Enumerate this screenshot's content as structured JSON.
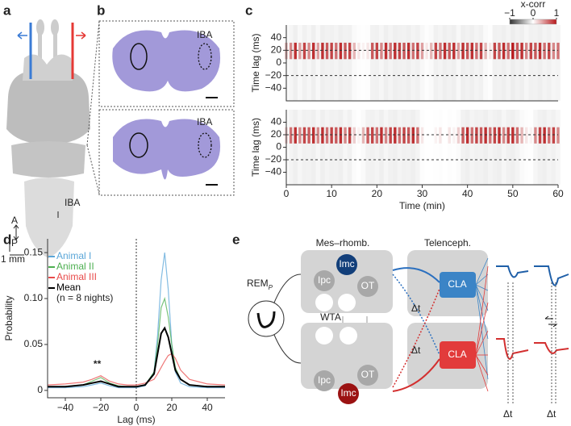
{
  "panel_labels": [
    "a",
    "b",
    "c",
    "d",
    "e"
  ],
  "panel_a": {
    "region": "IBA",
    "anterior": "A",
    "posterior": "P",
    "scale": "1 mm"
  },
  "panel_b": {
    "regions": [
      "IBA",
      "IBA"
    ]
  },
  "chart_data": [
    {
      "type": "heatmap",
      "ylabel": "Time lag (ms)",
      "x": [
        0,
        1,
        2,
        3,
        4,
        5,
        6,
        7,
        8,
        9,
        10,
        11,
        12,
        13,
        14,
        15,
        16,
        17,
        18,
        19,
        20,
        21,
        22,
        23,
        24,
        25,
        26,
        27,
        28,
        29,
        30,
        31,
        32,
        33,
        34,
        35,
        36,
        37,
        38,
        39,
        40,
        41,
        42,
        43,
        44,
        45,
        46,
        47,
        48,
        49,
        50,
        51,
        52,
        53,
        54,
        55,
        56,
        57,
        58,
        59,
        60
      ],
      "values": [
        0.3,
        0.5,
        0.9,
        0.4,
        0.8,
        0.5,
        0.9,
        0.4,
        0.9,
        0.7,
        0.8,
        0.6,
        0.9,
        0.7,
        0.8,
        0.3,
        0.1,
        0.05,
        0.1,
        0.7,
        0.8,
        0.5,
        0.9,
        0.6,
        0.9,
        0.8,
        0.7,
        0.9,
        0.6,
        0.8,
        0.4,
        0.1,
        0.3,
        0.8,
        0.6,
        0.9,
        0.7,
        0.9,
        0.4,
        0.9,
        0.7,
        0.9,
        0.6,
        0.8,
        0.3,
        0.1,
        0.8,
        0.7,
        0.9,
        0.6,
        1.0,
        0.7,
        0.9,
        0.5,
        0.8,
        0.7,
        0.9,
        0.6,
        0.8,
        0.5,
        0.6
      ],
      "color": "#b8191c",
      "xlim": [
        0,
        60
      ],
      "ylim": [
        -60,
        60
      ],
      "yticks": [
        {
          "value": -40,
          "label": "−40"
        },
        {
          "value": -20,
          "label": "−20"
        },
        0,
        20,
        40
      ],
      "hlines": [
        20,
        -20
      ],
      "colorbar": {
        "label": "x-corr",
        "ticks": [
          {
            "value": -1,
            "label": "−1"
          },
          0,
          1
        ]
      }
    },
    {
      "type": "heatmap",
      "ylabel": "Time lag (ms)",
      "xlabel": "Time (min)",
      "x": [
        0,
        1,
        2,
        3,
        4,
        5,
        6,
        7,
        8,
        9,
        10,
        11,
        12,
        13,
        14,
        15,
        16,
        17,
        18,
        19,
        20,
        21,
        22,
        23,
        24,
        25,
        26,
        27,
        28,
        29,
        30,
        31,
        32,
        33,
        34,
        35,
        36,
        37,
        38,
        39,
        40,
        41,
        42,
        43,
        44,
        45,
        46,
        47,
        48,
        49,
        50,
        51,
        52,
        53,
        54,
        55,
        56,
        57,
        58,
        59,
        60
      ],
      "values": [
        0.2,
        0.6,
        0.9,
        0.5,
        0.8,
        0.7,
        0.9,
        0.5,
        0.9,
        0.6,
        0.8,
        0.7,
        0.9,
        0.5,
        0.8,
        0.2,
        0.05,
        0.3,
        0.7,
        0.8,
        0.6,
        0.9,
        0.5,
        0.8,
        0.9,
        0.6,
        0.8,
        0.7,
        0.9,
        0.6,
        0.1,
        0,
        0,
        0.05,
        0.1,
        0,
        0.1,
        0.05,
        0.2,
        0.7,
        0.9,
        0.6,
        0.8,
        0.7,
        0.9,
        0.6,
        0.8,
        0.9,
        0.5,
        0.8,
        0.9,
        0.6,
        0.3,
        0.1,
        0.05,
        0.5,
        0.8,
        0.9,
        0.6,
        0.8,
        0.5
      ],
      "color": "#b8191c",
      "xlim": [
        0,
        60
      ],
      "ylim": [
        -60,
        60
      ],
      "xticks": [
        0,
        10,
        20,
        30,
        40,
        50,
        60
      ],
      "yticks": [
        {
          "value": -40,
          "label": "−40"
        },
        {
          "value": -20,
          "label": "−20"
        },
        0,
        20,
        40
      ],
      "hlines": [
        20,
        -20
      ]
    },
    {
      "type": "line",
      "xlabel": "Lag (ms)",
      "ylabel": "Probability",
      "x": [
        -50,
        -40,
        -30,
        -25,
        -20,
        -15,
        -10,
        -5,
        0,
        5,
        10,
        12,
        14,
        16,
        18,
        20,
        22,
        25,
        30,
        40,
        50
      ],
      "series": [
        {
          "name": "Animal I",
          "color": "#5aa6d8",
          "values": [
            0.003,
            0.003,
            0.004,
            0.006,
            0.008,
            0.005,
            0.003,
            0.003,
            0.003,
            0.005,
            0.02,
            0.06,
            0.12,
            0.15,
            0.11,
            0.05,
            0.02,
            0.008,
            0.004,
            0.003,
            0.003
          ]
        },
        {
          "name": "Animal II",
          "color": "#4caf50",
          "values": [
            0.004,
            0.004,
            0.006,
            0.01,
            0.014,
            0.008,
            0.005,
            0.004,
            0.004,
            0.006,
            0.02,
            0.05,
            0.09,
            0.1,
            0.08,
            0.05,
            0.025,
            0.012,
            0.006,
            0.004,
            0.004
          ]
        },
        {
          "name": "Animal III",
          "color": "#e84a4a",
          "values": [
            0.006,
            0.007,
            0.009,
            0.012,
            0.016,
            0.01,
            0.007,
            0.006,
            0.006,
            0.008,
            0.012,
            0.018,
            0.025,
            0.032,
            0.038,
            0.04,
            0.035,
            0.022,
            0.012,
            0.007,
            0.006
          ]
        },
        {
          "name": "Mean",
          "color": "#000000",
          "values": [
            0.004,
            0.004,
            0.006,
            0.008,
            0.01,
            0.007,
            0.004,
            0.004,
            0.004,
            0.006,
            0.018,
            0.04,
            0.062,
            0.068,
            0.058,
            0.04,
            0.022,
            0.012,
            0.006,
            0.004,
            0.004
          ]
        }
      ],
      "legend_note": "(n = 8 nights)",
      "annotation": "**",
      "vline": 0,
      "xlim": [
        -50,
        50
      ],
      "ylim": [
        -0.008,
        0.165
      ],
      "xticks": [
        {
          "value": -40,
          "label": "−40"
        },
        {
          "value": -20,
          "label": "−20"
        },
        0,
        20,
        40
      ],
      "yticks": [
        0,
        0.05,
        {
          "value": 0.1,
          "label": "0.10"
        },
        0.15
      ]
    }
  ],
  "panel_e": {
    "left_title": "Mes–rhomb.",
    "right_title": "Telenceph.",
    "rem": "REM",
    "rem_sub": "P",
    "wta": "WTA",
    "nodes": [
      "Imc",
      "Ipc",
      "OT",
      "Ipc",
      "OT",
      "Imc",
      "CLA",
      "CLA"
    ],
    "delays": [
      "Δt",
      "Δt",
      "Δt",
      "Δt"
    ]
  }
}
